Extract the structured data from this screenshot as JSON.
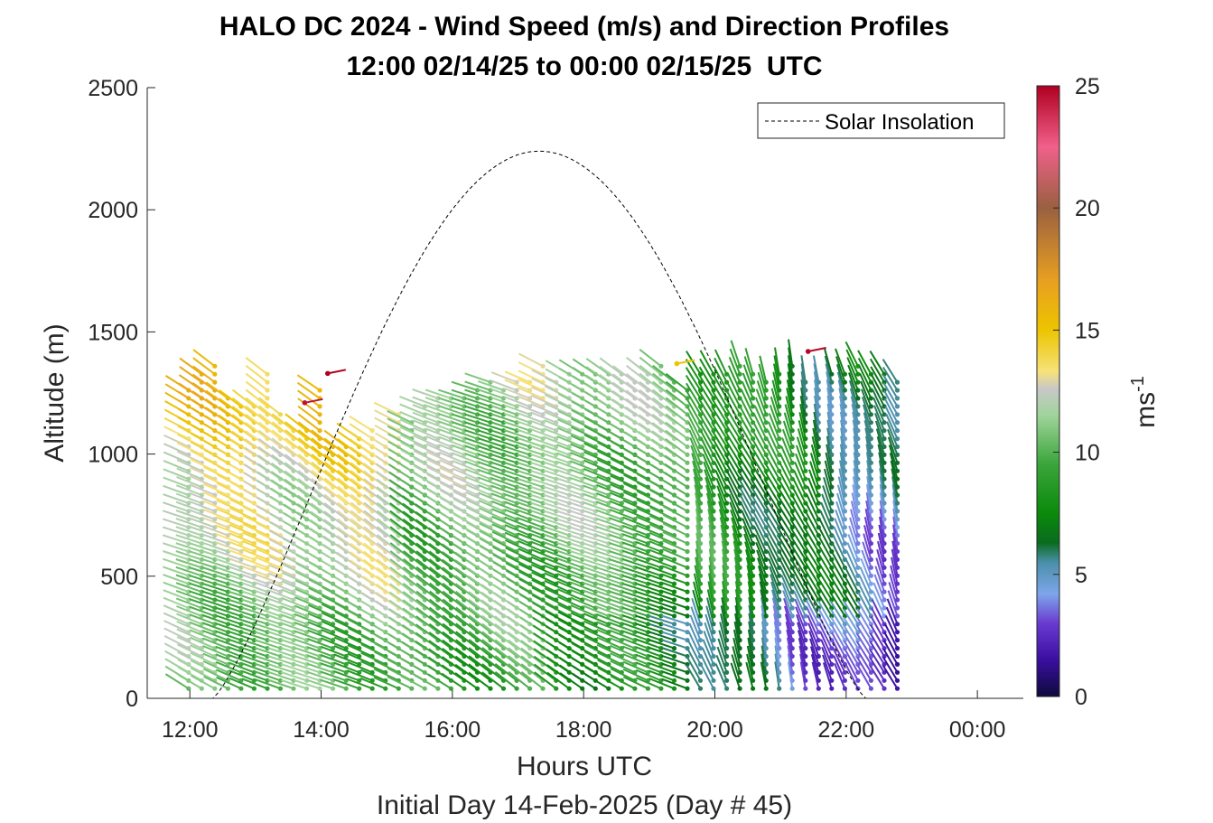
{
  "chart_data": {
    "type": "wind_barb_profile",
    "title": "HALO DC 2024 - Wind Speed (m/s) and Direction Profiles",
    "subtitle": "12:00 02/14/25 to 00:00 02/15/25  UTC",
    "xlabel": "Hours UTC",
    "ylabel": "Altitude (m)",
    "footer": "Initial Day 14-Feb-2025 (Day # 45)",
    "xlim_hours": [
      11.35,
      24.7
    ],
    "ylim": [
      0,
      2500
    ],
    "x_ticks": [
      {
        "hour": 12,
        "label": "12:00"
      },
      {
        "hour": 14,
        "label": "14:00"
      },
      {
        "hour": 16,
        "label": "16:00"
      },
      {
        "hour": 18,
        "label": "18:00"
      },
      {
        "hour": 20,
        "label": "20:00"
      },
      {
        "hour": 22,
        "label": "22:00"
      },
      {
        "hour": 24,
        "label": "00:00"
      }
    ],
    "y_ticks": [
      0,
      500,
      1000,
      1500,
      2000,
      2500
    ],
    "legend": {
      "label": "Solar Insolation",
      "location": "top-right"
    },
    "solar_insolation": {
      "sunrise_hour": 12.35,
      "sunset_hour": 22.3,
      "peak_hour": 17.33,
      "peak_altitude_scale": 2240
    },
    "colorbar": {
      "label": "ms",
      "label_superscript": "-1",
      "range": [
        0,
        25
      ],
      "ticks": [
        0,
        5,
        10,
        15,
        20,
        25
      ],
      "stops": [
        {
          "v": 0,
          "color": "#0d0a3a"
        },
        {
          "v": 1.5,
          "color": "#3a0fa0"
        },
        {
          "v": 3,
          "color": "#6a3ad0"
        },
        {
          "v": 4.2,
          "color": "#7da6ea"
        },
        {
          "v": 5.5,
          "color": "#4a8fa8"
        },
        {
          "v": 6.3,
          "color": "#0a6b1e"
        },
        {
          "v": 7.5,
          "color": "#0b8a0b"
        },
        {
          "v": 9.5,
          "color": "#3aa53a"
        },
        {
          "v": 11.5,
          "color": "#9fd49a"
        },
        {
          "v": 12.6,
          "color": "#c8c8c8"
        },
        {
          "v": 13.3,
          "color": "#f6e27a"
        },
        {
          "v": 15,
          "color": "#ecc400"
        },
        {
          "v": 17,
          "color": "#e8a020"
        },
        {
          "v": 20,
          "color": "#9a6040"
        },
        {
          "v": 22.5,
          "color": "#f0608a"
        },
        {
          "v": 25,
          "color": "#b00020"
        }
      ]
    },
    "profiles": {
      "start_hour": 11.98,
      "end_hour": 22.85,
      "interval_hours": 0.2,
      "altitude_step_m": 33,
      "min_altitude_m": 40,
      "top_altitude_m": [
        1280,
        1350,
        1370,
        1260,
        1200,
        1220,
        1330,
        1180,
        1120,
        1120,
        1270,
        1030,
        1030,
        1090,
        1100,
        1050,
        1170,
        1150,
        1220,
        1250,
        1230,
        1260,
        1270,
        1300,
        1290,
        1310,
        1310,
        1370,
        1300,
        1330,
        1340,
        1330,
        1340,
        1330,
        1320,
        1340,
        1360,
        1310,
        1290,
        1350,
        1330,
        1350,
        1360,
        1340,
        1300,
        1330,
        1370,
        1310,
        1320,
        1330,
        1330,
        1380,
        1350,
        1330,
        1310
      ]
    },
    "annotations": [
      {
        "hour": 14.1,
        "altitude": 1330,
        "speed": 25
      },
      {
        "hour": 13.75,
        "altitude": 1210,
        "speed": 24.5
      },
      {
        "hour": 21.42,
        "altitude": 1420,
        "speed": 24.8
      },
      {
        "hour": 19.42,
        "altitude": 1370,
        "speed": 15
      }
    ]
  },
  "colors": {
    "axis": "#262626",
    "legend_border": "#262626",
    "insolation_line": "#000000"
  }
}
